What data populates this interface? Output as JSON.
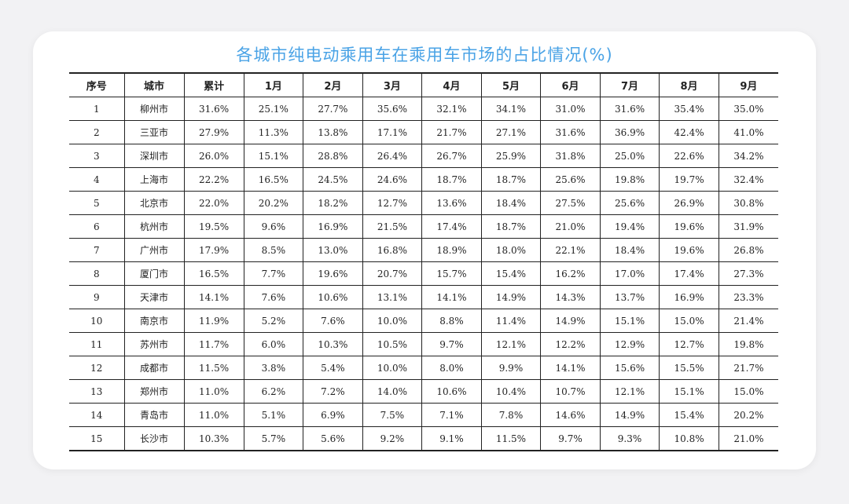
{
  "title": "各城市纯电动乘用车在乘用车市场的占比情况(%)",
  "table": {
    "headers": [
      "序号",
      "城市",
      "累计",
      "1月",
      "2月",
      "3月",
      "4月",
      "5月",
      "6月",
      "7月",
      "8月",
      "9月"
    ],
    "rows": [
      [
        "1",
        "柳州市",
        "31.6%",
        "25.1%",
        "27.7%",
        "35.6%",
        "32.1%",
        "34.1%",
        "31.0%",
        "31.6%",
        "35.4%",
        "35.0%"
      ],
      [
        "2",
        "三亚市",
        "27.9%",
        "11.3%",
        "13.8%",
        "17.1%",
        "21.7%",
        "27.1%",
        "31.6%",
        "36.9%",
        "42.4%",
        "41.0%"
      ],
      [
        "3",
        "深圳市",
        "26.0%",
        "15.1%",
        "28.8%",
        "26.4%",
        "26.7%",
        "25.9%",
        "31.8%",
        "25.0%",
        "22.6%",
        "34.2%"
      ],
      [
        "4",
        "上海市",
        "22.2%",
        "16.5%",
        "24.5%",
        "24.6%",
        "18.7%",
        "18.7%",
        "25.6%",
        "19.8%",
        "19.7%",
        "32.4%"
      ],
      [
        "5",
        "北京市",
        "22.0%",
        "20.2%",
        "18.2%",
        "12.7%",
        "13.6%",
        "18.4%",
        "27.5%",
        "25.6%",
        "26.9%",
        "30.8%"
      ],
      [
        "6",
        "杭州市",
        "19.5%",
        "9.6%",
        "16.9%",
        "21.5%",
        "17.4%",
        "18.7%",
        "21.0%",
        "19.4%",
        "19.6%",
        "31.9%"
      ],
      [
        "7",
        "广州市",
        "17.9%",
        "8.5%",
        "13.0%",
        "16.8%",
        "18.9%",
        "18.0%",
        "22.1%",
        "18.4%",
        "19.6%",
        "26.8%"
      ],
      [
        "8",
        "厦门市",
        "16.5%",
        "7.7%",
        "19.6%",
        "20.7%",
        "15.7%",
        "15.4%",
        "16.2%",
        "17.0%",
        "17.4%",
        "27.3%"
      ],
      [
        "9",
        "天津市",
        "14.1%",
        "7.6%",
        "10.6%",
        "13.1%",
        "14.1%",
        "14.9%",
        "14.3%",
        "13.7%",
        "16.9%",
        "23.3%"
      ],
      [
        "10",
        "南京市",
        "11.9%",
        "5.2%",
        "7.6%",
        "10.0%",
        "8.8%",
        "11.4%",
        "14.9%",
        "15.1%",
        "15.0%",
        "21.4%"
      ],
      [
        "11",
        "苏州市",
        "11.7%",
        "6.0%",
        "10.3%",
        "10.5%",
        "9.7%",
        "12.1%",
        "12.2%",
        "12.9%",
        "12.7%",
        "19.8%"
      ],
      [
        "12",
        "成都市",
        "11.5%",
        "3.8%",
        "5.4%",
        "10.0%",
        "8.0%",
        "9.9%",
        "14.1%",
        "15.6%",
        "15.5%",
        "21.7%"
      ],
      [
        "13",
        "郑州市",
        "11.0%",
        "6.2%",
        "7.2%",
        "14.0%",
        "10.6%",
        "10.4%",
        "10.7%",
        "12.1%",
        "15.1%",
        "15.0%"
      ],
      [
        "14",
        "青岛市",
        "11.0%",
        "5.1%",
        "6.9%",
        "7.5%",
        "7.1%",
        "7.8%",
        "14.6%",
        "14.9%",
        "15.4%",
        "20.2%"
      ],
      [
        "15",
        "长沙市",
        "10.3%",
        "5.7%",
        "5.6%",
        "9.2%",
        "9.1%",
        "11.5%",
        "9.7%",
        "9.3%",
        "10.8%",
        "21.0%"
      ]
    ]
  },
  "colors": {
    "title": "#4aa3e6",
    "background": "#f2f2f4",
    "card": "#ffffff",
    "rule": "#222222"
  }
}
